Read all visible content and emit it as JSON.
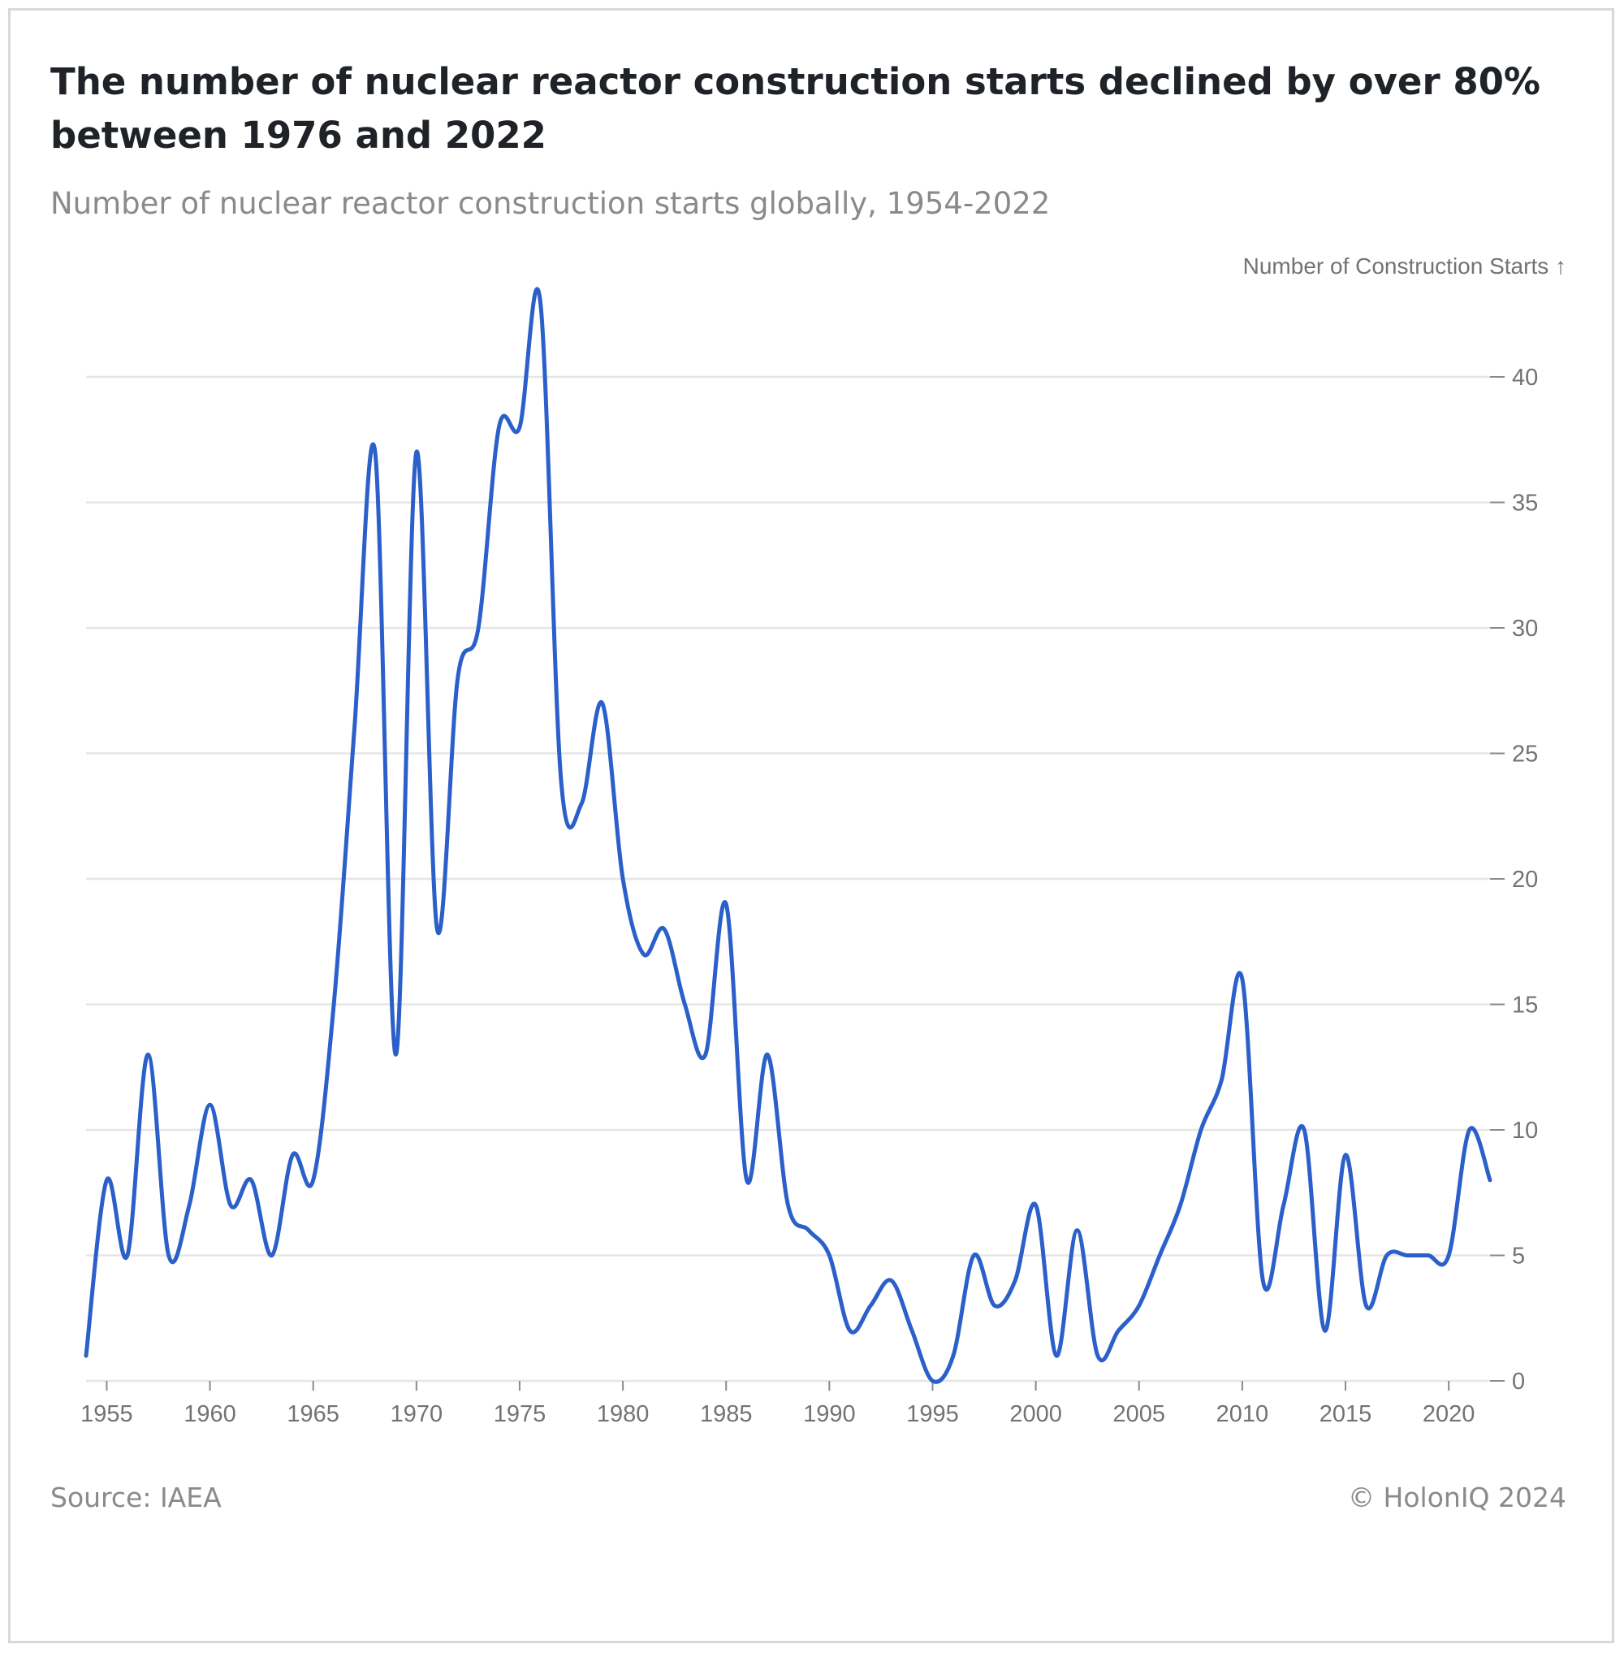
{
  "title": "The number of nuclear reactor construction starts declined by over 80% between 1976 and 2022",
  "subtitle": "Number of nuclear reactor construction starts globally, 1954-2022",
  "source": "Source: IAEA",
  "credit": "© HolonIQ 2024",
  "chart_data": {
    "type": "line",
    "ylabel": "Number of Construction Starts ↑",
    "xlabel": "",
    "xlim": [
      1954,
      2022
    ],
    "ylim": [
      0,
      40
    ],
    "y_axis_position": "right",
    "grid": "horizontal",
    "x_ticks": [
      1955,
      1960,
      1965,
      1970,
      1975,
      1980,
      1985,
      1990,
      1995,
      2000,
      2005,
      2010,
      2015,
      2020
    ],
    "y_ticks": [
      0,
      5,
      10,
      15,
      20,
      25,
      30,
      35,
      40
    ],
    "line_color": "#2b5fc9",
    "x": [
      1954,
      1955,
      1956,
      1957,
      1958,
      1959,
      1960,
      1961,
      1962,
      1963,
      1964,
      1965,
      1966,
      1967,
      1968,
      1969,
      1970,
      1971,
      1972,
      1973,
      1974,
      1975,
      1976,
      1977,
      1978,
      1979,
      1980,
      1981,
      1982,
      1983,
      1984,
      1985,
      1986,
      1987,
      1988,
      1989,
      1990,
      1991,
      1992,
      1993,
      1994,
      1995,
      1996,
      1997,
      1998,
      1999,
      2000,
      2001,
      2002,
      2003,
      2004,
      2005,
      2006,
      2007,
      2008,
      2009,
      2010,
      2011,
      2012,
      2013,
      2014,
      2015,
      2016,
      2017,
      2018,
      2019,
      2020,
      2021,
      2022
    ],
    "values": [
      1,
      8,
      5,
      13,
      5,
      7,
      11,
      7,
      8,
      5,
      9,
      8,
      15,
      26,
      37,
      13,
      37,
      18,
      28,
      30,
      38,
      38,
      43,
      24,
      23,
      27,
      20,
      17,
      18,
      15,
      13,
      19,
      8,
      13,
      7,
      6,
      5,
      2,
      3,
      4,
      2,
      0,
      1,
      5,
      3,
      4,
      7,
      1,
      6,
      1,
      2,
      3,
      5,
      7,
      10,
      12,
      16,
      4,
      7,
      10,
      2,
      9,
      3,
      5,
      5,
      5,
      5,
      10,
      8
    ]
  }
}
